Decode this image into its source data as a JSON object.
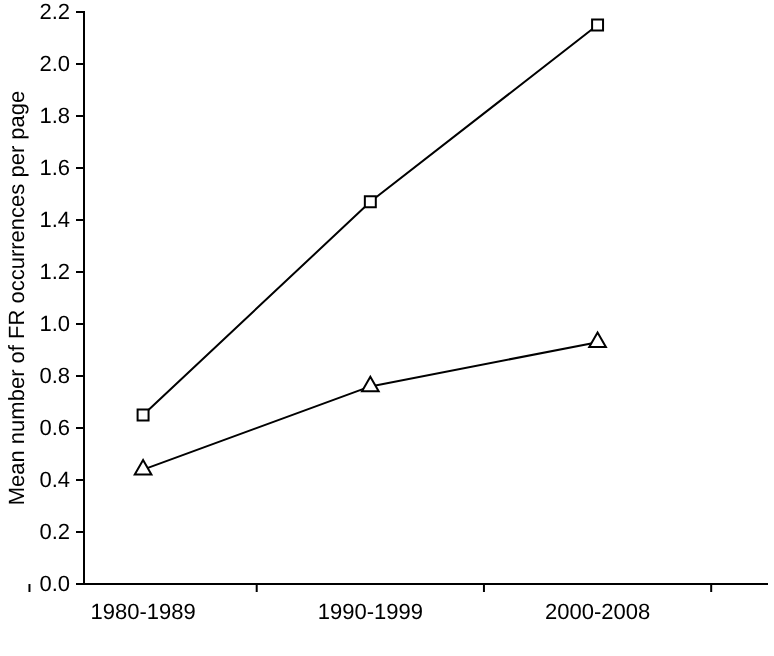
{
  "chart_data": {
    "type": "line",
    "ylabel": "Mean number of FR occurrences per page",
    "categories": [
      "1980-1989",
      "1990-1999",
      "2000-2008"
    ],
    "series": [
      {
        "color": "#000000",
        "marker": "square",
        "values": [
          0.65,
          1.47,
          2.15
        ]
      },
      {
        "color": "#000000",
        "marker": "triangle",
        "values": [
          0.44,
          0.76,
          0.93
        ]
      }
    ],
    "ylim": [
      0,
      2.2
    ],
    "yticks": [
      {
        "value": 0,
        "label": "0.0"
      },
      0.2,
      0.4,
      0.6,
      0.8,
      {
        "value": 1,
        "label": "1.0"
      },
      1.2,
      1.4,
      1.6,
      1.8,
      {
        "value": 2,
        "label": "2.0"
      },
      2.2
    ],
    "grid": false,
    "line_style": "solid"
  }
}
